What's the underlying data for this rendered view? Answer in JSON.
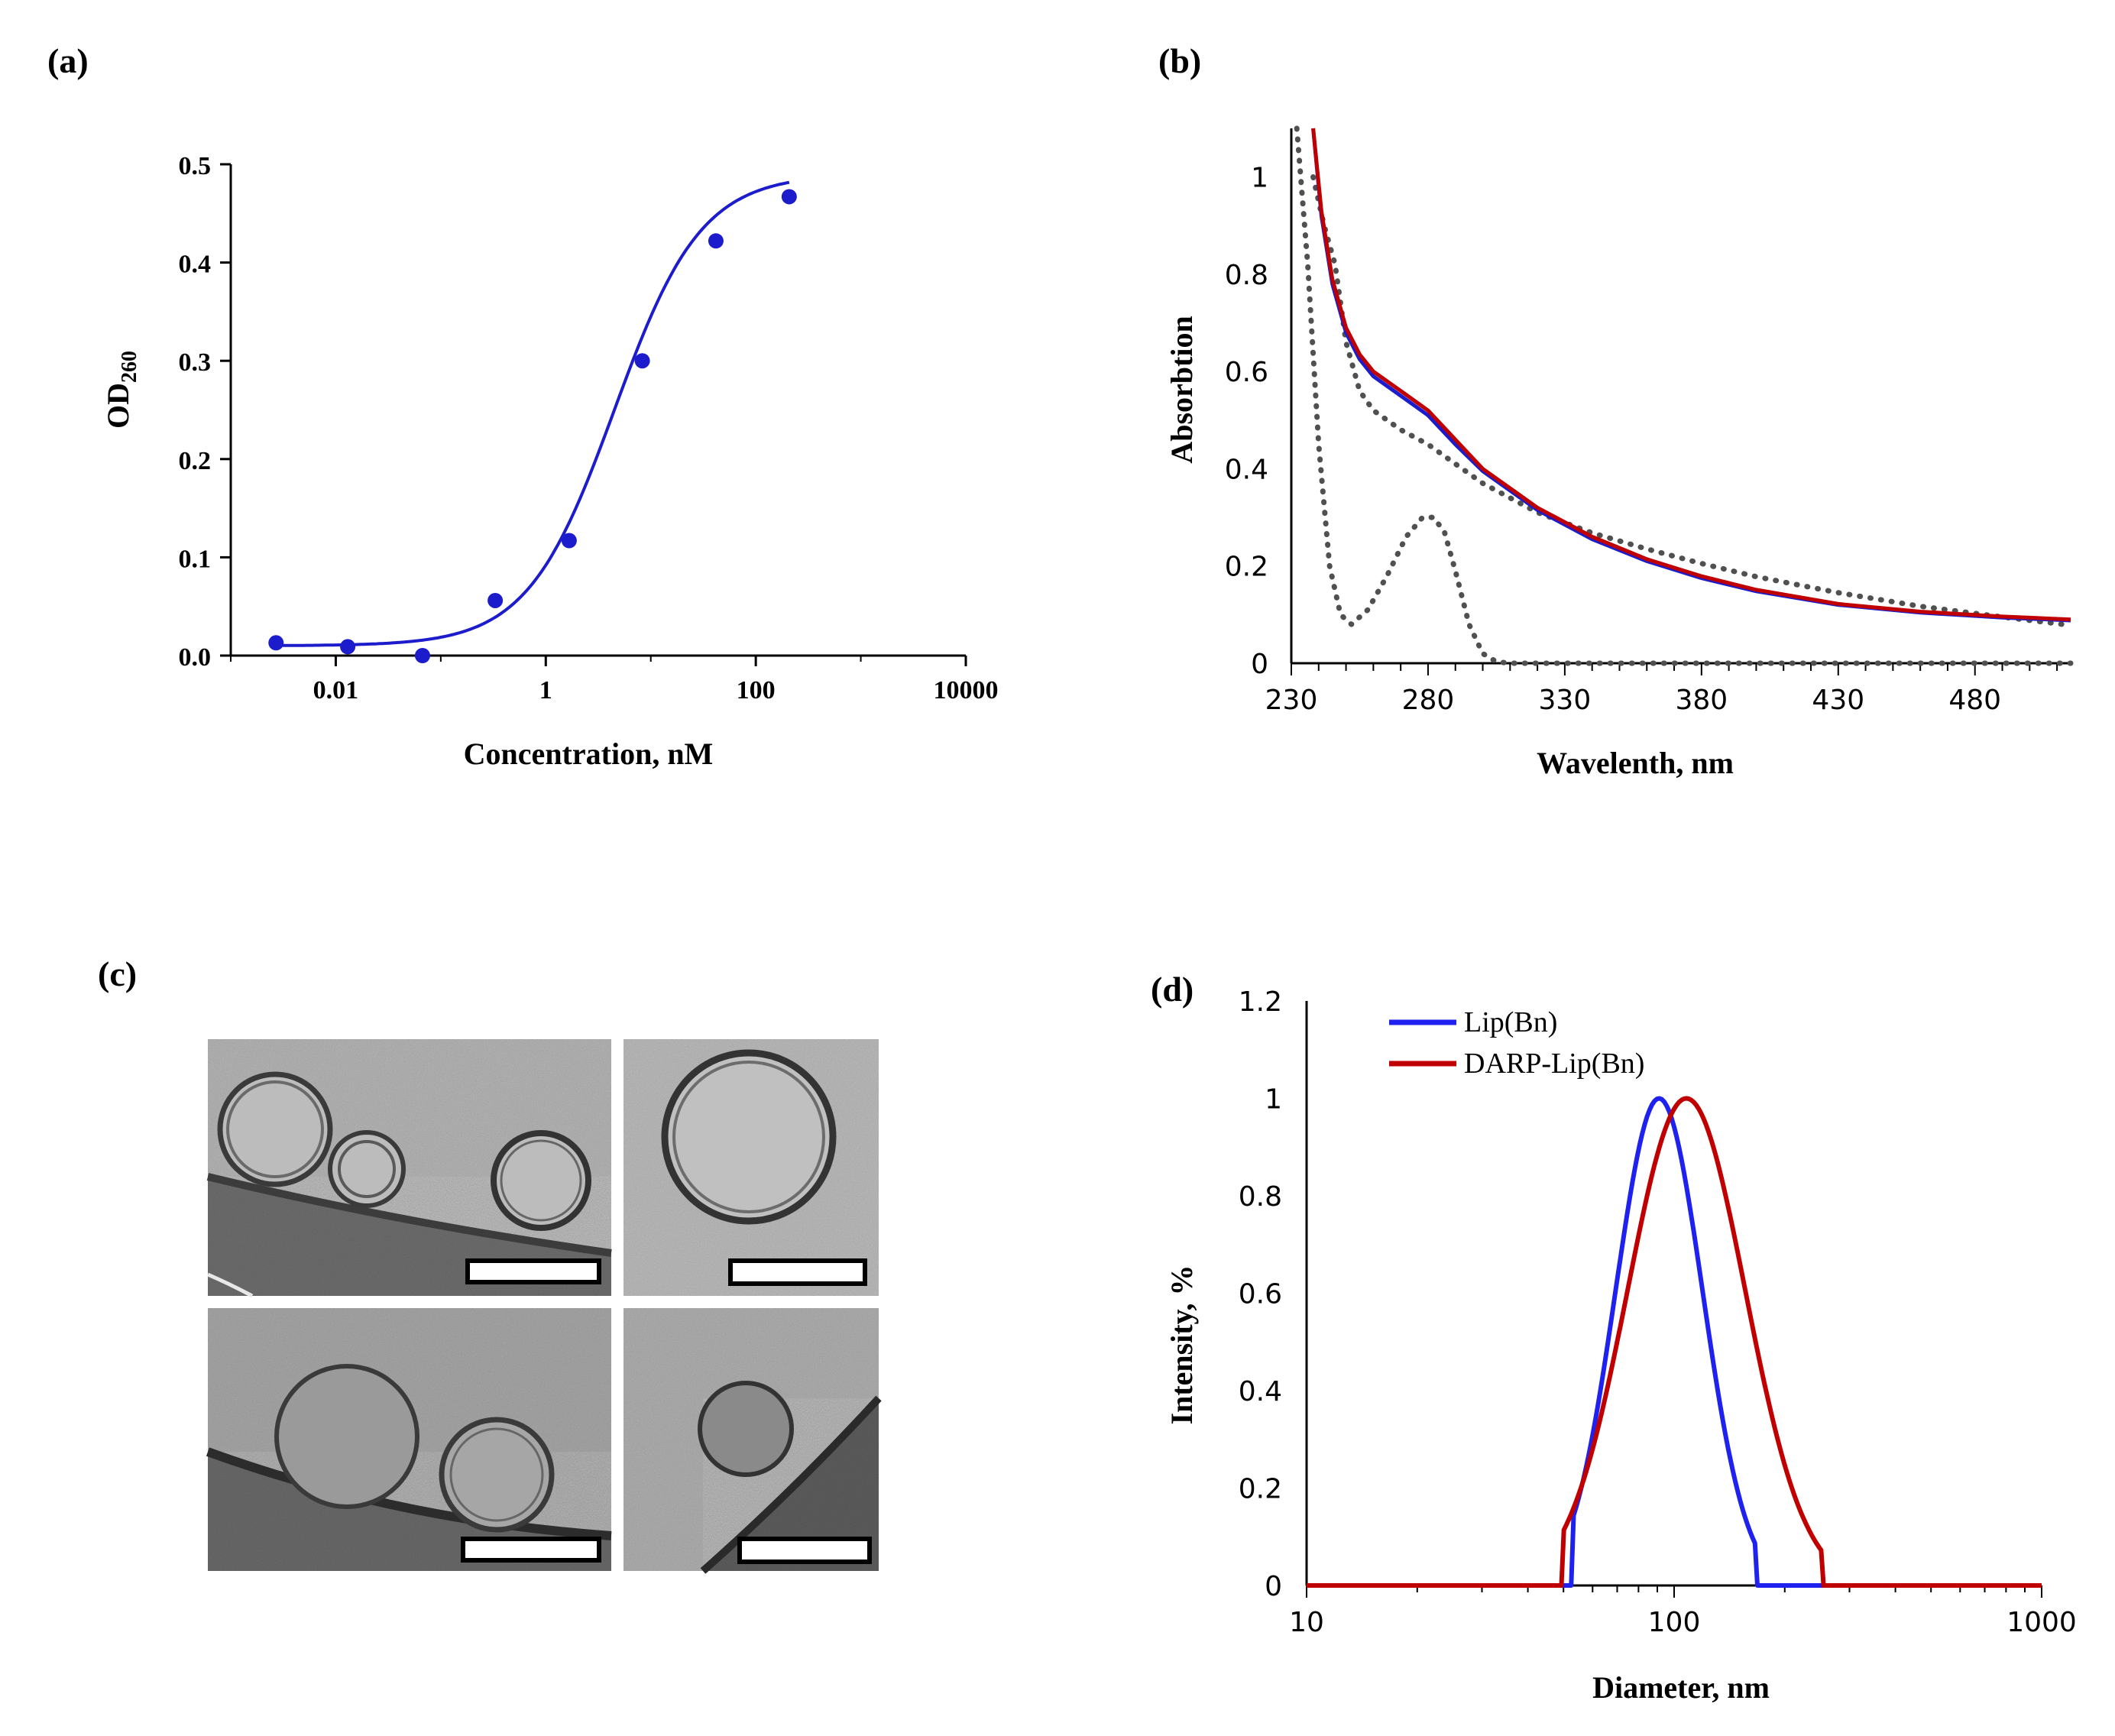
{
  "panels": {
    "a": {
      "label": "(a)"
    },
    "b": {
      "label": "(b)"
    },
    "c": {
      "label": "(c)"
    },
    "d": {
      "label": "(d)"
    }
  },
  "colors": {
    "blue": "#1c1ccc",
    "blue_bright": "#1f22ee",
    "red": "#c00000",
    "dotted": "#505050",
    "axis": "#000000",
    "micrograph_bg": "#b4b4b4"
  },
  "micrographs": {
    "description_icons": [
      "vesicle-cluster",
      "single-vesicle",
      "vesicle-pair",
      "small-vesicle"
    ],
    "scale_bar_count": 4
  },
  "chart_data": [
    {
      "panel": "a",
      "type": "scatter",
      "xscale": "log",
      "xlim": [
        0.001,
        10000
      ],
      "ylim": [
        0,
        0.5
      ],
      "xticks": [
        0.01,
        1,
        100,
        10000
      ],
      "xtick_labels": [
        "0.01",
        "1",
        "100",
        "10000"
      ],
      "yticks": [
        0,
        0.1,
        0.2,
        0.3,
        0.4,
        0.5
      ],
      "ytick_labels": [
        "0.0",
        "0.1",
        "0.2",
        "0.3",
        "0.4",
        "0.5"
      ],
      "xlabel": "Concentration, nM",
      "ylabel": {
        "main": "OD",
        "sub": "260"
      },
      "points": [
        {
          "x": 0.0027,
          "y": 0.013
        },
        {
          "x": 0.013,
          "y": 0.009
        },
        {
          "x": 0.067,
          "y": 0.0
        },
        {
          "x": 0.33,
          "y": 0.056
        },
        {
          "x": 1.67,
          "y": 0.117
        },
        {
          "x": 8.3,
          "y": 0.3
        },
        {
          "x": 41.7,
          "y": 0.422
        },
        {
          "x": 208,
          "y": 0.467
        }
      ],
      "fit": {
        "bottom": 0.01,
        "top": 0.49,
        "ec50": 4.5,
        "hill": 1.05
      }
    },
    {
      "panel": "b",
      "type": "line",
      "xlim": [
        230,
        515
      ],
      "ylim": [
        0,
        1.1
      ],
      "xticks": [
        230,
        280,
        330,
        380,
        430,
        480
      ],
      "xtick_labels": [
        "230",
        "280",
        "330",
        "380",
        "430",
        "480"
      ],
      "yticks": [
        0,
        0.2,
        0.4,
        0.6,
        0.8,
        1
      ],
      "ytick_labels": [
        "0",
        "0.2",
        "0.4",
        "0.6",
        "0.8",
        "1"
      ],
      "xlabel": "Wavelenth, nm",
      "ylabel": "Absorbtion",
      "series": [
        {
          "style": "dotted",
          "color": "#505050",
          "x": [
            232,
            236,
            240,
            244,
            248,
            252,
            258,
            265,
            272,
            278,
            282,
            286,
            290,
            295,
            300,
            305,
            310,
            330,
            380,
            430,
            480,
            515
          ],
          "y": [
            1.1,
            0.82,
            0.45,
            0.2,
            0.1,
            0.08,
            0.11,
            0.18,
            0.26,
            0.3,
            0.3,
            0.27,
            0.19,
            0.08,
            0.02,
            0.003,
            0,
            0,
            0,
            0,
            0,
            0
          ]
        },
        {
          "style": "dotted",
          "color": "#505050",
          "x": [
            238,
            242,
            246,
            250,
            255,
            260,
            270,
            280,
            290,
            300,
            320,
            340,
            360,
            380,
            400,
            430,
            460,
            490,
            515
          ],
          "y": [
            1.0,
            0.9,
            0.82,
            0.66,
            0.56,
            0.52,
            0.48,
            0.45,
            0.41,
            0.37,
            0.31,
            0.268,
            0.235,
            0.205,
            0.178,
            0.145,
            0.117,
            0.095,
            0.078
          ]
        },
        {
          "style": "solid",
          "color": "#1c1ccc",
          "x": [
            238,
            241,
            245,
            250,
            255,
            260,
            270,
            280,
            290,
            300,
            320,
            340,
            360,
            380,
            400,
            430,
            460,
            490,
            515
          ],
          "y": [
            1.1,
            0.92,
            0.78,
            0.68,
            0.625,
            0.59,
            0.55,
            0.51,
            0.45,
            0.395,
            0.315,
            0.255,
            0.21,
            0.175,
            0.148,
            0.12,
            0.104,
            0.094,
            0.088
          ]
        },
        {
          "style": "solid",
          "color": "#c00000",
          "x": [
            238,
            241,
            245,
            250,
            255,
            260,
            270,
            280,
            290,
            300,
            320,
            340,
            360,
            380,
            400,
            430,
            460,
            490,
            515
          ],
          "y": [
            1.1,
            0.93,
            0.79,
            0.69,
            0.635,
            0.6,
            0.56,
            0.52,
            0.46,
            0.4,
            0.32,
            0.26,
            0.214,
            0.179,
            0.151,
            0.122,
            0.106,
            0.096,
            0.09
          ]
        }
      ]
    },
    {
      "panel": "d",
      "type": "line",
      "xscale": "log",
      "xlim": [
        10,
        1000
      ],
      "ylim": [
        0,
        1.2
      ],
      "xticks": [
        10,
        100,
        1000
      ],
      "xtick_labels": [
        "10",
        "100",
        "1000"
      ],
      "yticks": [
        0,
        0.2,
        0.4,
        0.6,
        0.8,
        1,
        1.2
      ],
      "ytick_labels": [
        "0",
        "0.2",
        "0.4",
        "0.6",
        "0.8",
        "1",
        "1.2"
      ],
      "xlabel": "Diameter, nm",
      "ylabel": "Intensity, %",
      "legend_position": "top-left",
      "series": [
        {
          "name": "Lip(Bn)",
          "color": "#1f22ee",
          "peak_x": 91,
          "peak_y": 1.0,
          "log_sigma": 0.118,
          "range": [
            53,
            168
          ]
        },
        {
          "name": "DARP-Lip(Bn)",
          "color": "#c00000",
          "peak_x": 108,
          "peak_y": 1.0,
          "log_sigma": 0.16,
          "range": [
            50,
            252
          ]
        }
      ]
    }
  ]
}
